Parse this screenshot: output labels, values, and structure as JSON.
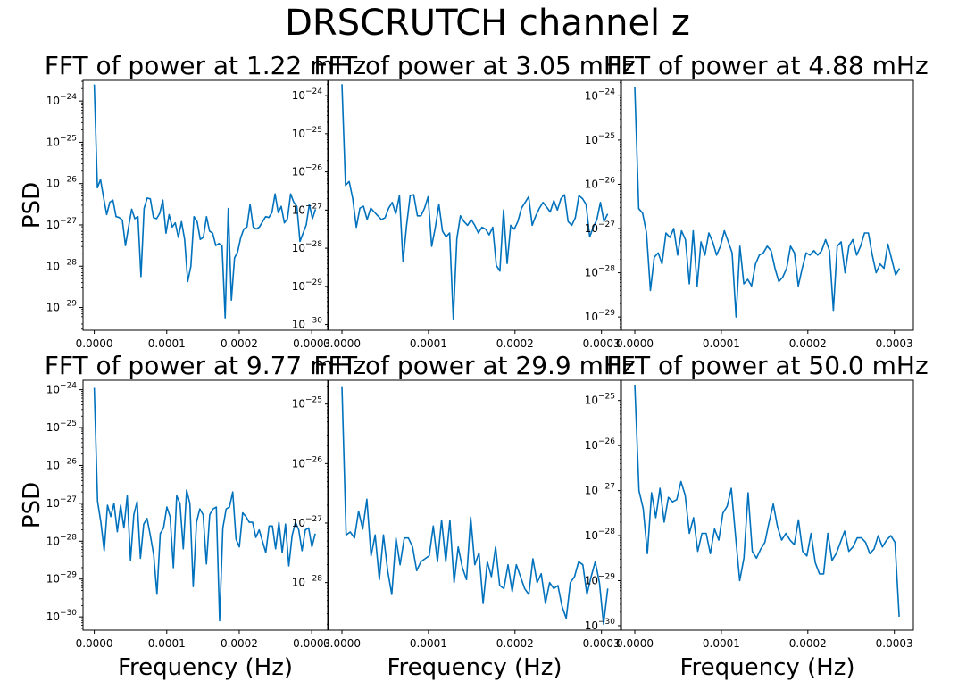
{
  "figure": {
    "suptitle": "DRSCRUTCH channel z",
    "line_color": "#0072bd",
    "x_ticks": [
      "0.0000",
      "0.0001",
      "0.0002",
      "0.0003"
    ],
    "row_ylabel": "PSD",
    "col_xlabel": "Frequency (Hz)"
  },
  "chart_data": [
    {
      "type": "line",
      "scale_y": "log",
      "xlim": [
        -1.55e-05,
        0.000322
      ],
      "title": "FFT of power at 1.22 mHz",
      "ylabel": "PSD",
      "xlabel": "",
      "ylim_log10": [
        -29.55,
        -23.5
      ],
      "y_ticks": [
        -29,
        -28,
        -27,
        -26,
        -25,
        -24
      ],
      "y_log10": [
        -23.6,
        -26.1,
        -25.9,
        -26.35,
        -26.75,
        -26.45,
        -26.4,
        -26.8,
        -26.82,
        -26.88,
        -27.5,
        -27.05,
        -26.62,
        -26.85,
        -26.8,
        -28.25,
        -26.6,
        -26.35,
        -26.37,
        -26.82,
        -26.85,
        -26.72,
        -26.4,
        -27.2,
        -26.75,
        -27.05,
        -26.95,
        -27.3,
        -26.92,
        -27.35,
        -28.37,
        -28.0,
        -26.8,
        -26.92,
        -27.35,
        -27.3,
        -26.8,
        -27.15,
        -27.2,
        -27.5,
        -27.45,
        -27.5,
        -29.25,
        -26.6,
        -28.82,
        -27.8,
        -27.65,
        -27.3,
        -27.1,
        -27.05,
        -26.5,
        -27.05,
        -27.1,
        -27.05,
        -26.92,
        -26.8,
        -26.82,
        -26.7,
        -26.25,
        -26.7,
        -26.55,
        -26.95,
        -26.85,
        -26.25,
        -26.45,
        -26.55,
        -27.4,
        -27.2,
        -27.0,
        -26.5,
        -26.85,
        -26.62
      ],
      "x_start": 0.0,
      "x_step": 4.3e-06
    },
    {
      "type": "line",
      "scale_y": "log",
      "xlim": [
        -1.55e-05,
        0.000322
      ],
      "title": "FFT of power at 3.05 mHz",
      "ylabel": "",
      "xlabel": "",
      "ylim_log10": [
        -30.15,
        -23.6
      ],
      "y_ticks": [
        -30,
        -29,
        -28,
        -27,
        -26,
        -25,
        -24
      ],
      "y_log10": [
        -23.7,
        -26.35,
        -26.25,
        -26.7,
        -27.45,
        -26.95,
        -26.9,
        -27.25,
        -26.95,
        -27.05,
        -27.15,
        -27.25,
        -27.2,
        -26.95,
        -26.8,
        -27.1,
        -26.62,
        -28.35,
        -27.4,
        -26.62,
        -26.6,
        -27.15,
        -27.15,
        -26.95,
        -26.65,
        -27.95,
        -27.45,
        -26.85,
        -27.55,
        -27.7,
        -27.6,
        -29.85,
        -27.75,
        -27.15,
        -27.3,
        -27.4,
        -27.25,
        -27.4,
        -27.6,
        -27.45,
        -27.5,
        -27.65,
        -27.45,
        -28.45,
        -28.6,
        -27.0,
        -28.4,
        -27.4,
        -27.5,
        -27.3,
        -26.95,
        -26.8,
        -26.65,
        -27.4,
        -27.15,
        -26.95,
        -26.8,
        -26.92,
        -27.05,
        -26.75,
        -27.0,
        -26.7,
        -26.6,
        -27.3,
        -27.4,
        -27.2,
        -26.62,
        -26.7,
        -26.85,
        -27.7,
        -27.45,
        -27.25,
        -26.8,
        -27.3,
        -27.1
      ],
      "x_start": 0.0,
      "x_step": 4.15e-06
    },
    {
      "type": "line",
      "scale_y": "log",
      "xlim": [
        -1.55e-05,
        0.000322
      ],
      "title": "FFT of power at 4.88 mHz",
      "ylabel": "",
      "xlabel": "",
      "ylim_log10": [
        -29.3,
        -23.65
      ],
      "y_ticks": [
        -29,
        -28,
        -27,
        -26,
        -25,
        -24
      ],
      "y_log10": [
        -23.8,
        -26.55,
        -26.65,
        -27.1,
        -28.4,
        -27.65,
        -27.55,
        -27.8,
        -27.1,
        -27.2,
        -27.0,
        -27.6,
        -27.05,
        -27.25,
        -28.25,
        -27.05,
        -28.3,
        -27.3,
        -27.6,
        -27.1,
        -27.3,
        -27.6,
        -27.4,
        -27.05,
        -27.3,
        -27.55,
        -29.0,
        -27.4,
        -28.25,
        -28.15,
        -28.3,
        -27.8,
        -27.6,
        -27.55,
        -27.4,
        -27.5,
        -27.9,
        -28.2,
        -28.1,
        -27.9,
        -27.4,
        -27.55,
        -28.3,
        -27.9,
        -27.55,
        -27.6,
        -27.5,
        -27.6,
        -27.5,
        -27.25,
        -27.5,
        -28.85,
        -27.4,
        -27.3,
        -28.0,
        -27.4,
        -27.25,
        -27.6,
        -27.4,
        -27.1,
        -27.1,
        -27.6,
        -28.0,
        -27.8,
        -27.9,
        -27.35,
        -27.7,
        -28.05,
        -27.9
      ],
      "x_start": 0.0,
      "x_step": 4.5e-06
    },
    {
      "type": "line",
      "scale_y": "log",
      "xlim": [
        -1.55e-05,
        0.000322
      ],
      "title": "FFT of power at 9.77 mHz",
      "ylabel": "PSD",
      "xlabel": "Frequency (Hz)",
      "ylim_log10": [
        -30.35,
        -23.75
      ],
      "y_ticks": [
        -30,
        -29,
        -28,
        -27,
        -26,
        -25,
        -24
      ],
      "y_log10": [
        -23.95,
        -26.95,
        -27.5,
        -28.25,
        -27.05,
        -27.35,
        -27.0,
        -27.75,
        -27.05,
        -27.65,
        -26.8,
        -28.5,
        -27.3,
        -26.95,
        -28.45,
        -27.55,
        -27.4,
        -27.85,
        -28.35,
        -29.4,
        -27.8,
        -27.65,
        -27.1,
        -27.35,
        -28.7,
        -26.8,
        -27.0,
        -28.2,
        -26.65,
        -27.0,
        -29.2,
        -27.5,
        -27.15,
        -27.3,
        -28.6,
        -27.3,
        -27.15,
        -27.1,
        -30.1,
        -27.65,
        -27.15,
        -27.1,
        -26.7,
        -27.95,
        -28.15,
        -27.25,
        -27.35,
        -27.5,
        -27.5,
        -27.9,
        -27.7,
        -28.0,
        -28.3,
        -27.6,
        -27.6,
        -28.2,
        -27.5,
        -28.3,
        -27.55,
        -28.65,
        -27.85,
        -27.5,
        -27.7,
        -28.25,
        -27.7,
        -27.65,
        -28.15,
        -27.8
      ],
      "x_start": 0.0,
      "x_step": 4.55e-06
    },
    {
      "type": "line",
      "scale_y": "log",
      "xlim": [
        -1.55e-05,
        0.000322
      ],
      "title": "FFT of power at 29.9 mHz",
      "ylabel": "",
      "xlabel": "Frequency (Hz)",
      "ylim_log10": [
        -28.8,
        -24.6
      ],
      "y_ticks": [
        -28,
        -27,
        -26,
        -25
      ],
      "y_log10": [
        -24.7,
        -27.2,
        -27.15,
        -27.25,
        -26.8,
        -27.1,
        -26.6,
        -27.55,
        -27.2,
        -27.95,
        -27.2,
        -27.8,
        -28.2,
        -27.25,
        -27.7,
        -27.25,
        -27.25,
        -27.4,
        -27.8,
        -27.65,
        -27.6,
        -27.55,
        -27.05,
        -27.65,
        -26.95,
        -27.65,
        -26.95,
        -28.0,
        -27.4,
        -27.75,
        -27.95,
        -26.9,
        -27.7,
        -27.5,
        -28.35,
        -27.65,
        -27.9,
        -27.4,
        -28.05,
        -28.1,
        -27.7,
        -28.15,
        -27.7,
        -27.9,
        -28.1,
        -28.2,
        -27.6,
        -28.0,
        -27.85,
        -28.35,
        -28.0,
        -28.1,
        -28.05,
        -28.4,
        -28.6,
        -28.0,
        -27.9,
        -27.65,
        -27.7,
        -28.2,
        -27.9,
        -27.65,
        -28.0,
        -28.7,
        -28.1
      ],
      "x_start": 0.0,
      "x_step": 4.8e-06
    },
    {
      "type": "line",
      "scale_y": "log",
      "xlim": [
        -1.55e-05,
        0.000322
      ],
      "title": "FFT of power at 50.0 mHz",
      "ylabel": "",
      "xlabel": "Frequency (Hz)",
      "ylim_log10": [
        -30.1,
        -24.55
      ],
      "y_ticks": [
        -30,
        -29,
        -28,
        -27,
        -26,
        -25
      ],
      "y_log10": [
        -24.65,
        -27.0,
        -27.4,
        -28.4,
        -27.05,
        -27.6,
        -26.95,
        -27.7,
        -27.15,
        -27.25,
        -27.2,
        -26.8,
        -27.1,
        -27.95,
        -27.6,
        -28.35,
        -27.95,
        -27.95,
        -28.4,
        -27.85,
        -28.1,
        -27.5,
        -27.35,
        -26.95,
        -28.0,
        -29.0,
        -28.5,
        -27.05,
        -28.35,
        -28.5,
        -28.3,
        -28.15,
        -27.7,
        -27.3,
        -27.8,
        -28.1,
        -27.95,
        -28.1,
        -28.2,
        -27.65,
        -28.35,
        -28.45,
        -27.95,
        -28.6,
        -28.85,
        -28.85,
        -27.95,
        -28.55,
        -28.4,
        -28.15,
        -27.9,
        -28.35,
        -28.25,
        -28.05,
        -28.05,
        -28.15,
        -28.4,
        -28.3,
        -28.0,
        -28.25,
        -28.1,
        -28.0,
        -28.15,
        -29.8
      ],
      "x_start": 0.0,
      "x_step": 4.85e-06
    }
  ]
}
